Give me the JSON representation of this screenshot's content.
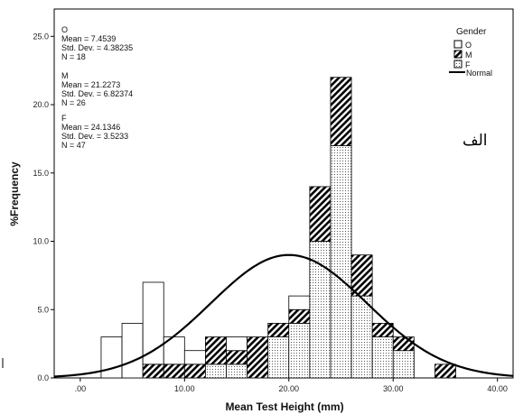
{
  "chart_data": {
    "type": "bar",
    "stacked": true,
    "xlabel": "Mean Test Height (mm)",
    "ylabel": "%Frequency",
    "xlim": [
      -2.5,
      41.5
    ],
    "ylim": [
      0,
      27
    ],
    "x_ticks": [
      0,
      10,
      20,
      30,
      40
    ],
    "x_tick_labels": [
      ".00",
      "10.00",
      "20.00",
      "30.00",
      "40.00"
    ],
    "y_ticks": [
      0,
      5,
      10,
      15,
      20,
      25
    ],
    "y_tick_labels": [
      "0.0",
      "5.0",
      "10.0",
      "15.0",
      "20.0",
      "25.0"
    ],
    "bin_width": 2,
    "legend": {
      "title": "Gender",
      "placement": "top-right",
      "entries": [
        {
          "key": "O",
          "label": "O",
          "pattern": "none"
        },
        {
          "key": "M",
          "label": "M",
          "pattern": "diagonal"
        },
        {
          "key": "F",
          "label": "F",
          "pattern": "dotted"
        },
        {
          "key": "Normal",
          "label": "Normal",
          "pattern": "line"
        }
      ]
    },
    "stats": [
      {
        "group": "O",
        "lines": [
          "O",
          "Mean = 7.4539",
          "Std. Dev. = 4.38235",
          "N = 18"
        ]
      },
      {
        "group": "M",
        "lines": [
          "M",
          "Mean = 21.2273",
          "Std. Dev. = 6.82374",
          "N = 26"
        ]
      },
      {
        "group": "F",
        "lines": [
          "F",
          "Mean = 24.1346",
          "Std. Dev. = 3.5233",
          "N = 47"
        ]
      }
    ],
    "annotation": "الف",
    "bins": [
      {
        "x0": 2,
        "O": 3,
        "M": 0,
        "F": 0
      },
      {
        "x0": 4,
        "O": 4,
        "M": 0,
        "F": 0
      },
      {
        "x0": 6,
        "O": 6,
        "M": 1,
        "F": 0
      },
      {
        "x0": 8,
        "O": 2,
        "M": 1,
        "F": 0
      },
      {
        "x0": 10,
        "O": 1,
        "M": 1,
        "F": 0
      },
      {
        "x0": 12,
        "O": 0,
        "M": 2,
        "F": 1
      },
      {
        "x0": 14,
        "O": 1,
        "M": 1,
        "F": 1
      },
      {
        "x0": 16,
        "O": 0,
        "M": 3,
        "F": 0
      },
      {
        "x0": 18,
        "O": 0,
        "M": 1,
        "F": 3
      },
      {
        "x0": 20,
        "O": 1,
        "M": 1,
        "F": 4
      },
      {
        "x0": 22,
        "O": 0,
        "M": 4,
        "F": 10
      },
      {
        "x0": 24,
        "O": 0,
        "M": 5,
        "F": 17
      },
      {
        "x0": 26,
        "O": 0,
        "M": 3,
        "F": 6
      },
      {
        "x0": 28,
        "O": 0,
        "M": 1,
        "F": 3
      },
      {
        "x0": 30,
        "O": 0,
        "M": 1,
        "F": 2
      },
      {
        "x0": 34,
        "O": 0,
        "M": 1,
        "F": 0
      }
    ],
    "normal_curve": {
      "mean": 20.0,
      "peak_y": 9.0,
      "sd": 7.5
    }
  }
}
